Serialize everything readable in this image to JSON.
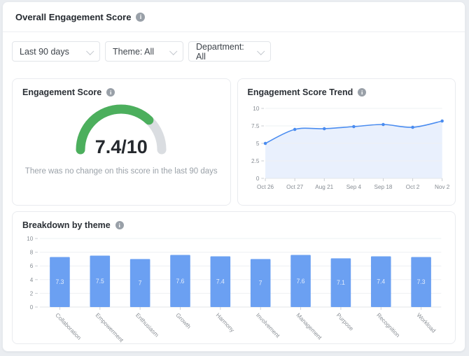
{
  "header": {
    "title": "Overall Engagement Score"
  },
  "filters": [
    {
      "label": "Last 90 days"
    },
    {
      "label": "Theme: All"
    },
    {
      "label": "Department: All"
    }
  ],
  "cards": {
    "gauge": {
      "title": "Engagement Score",
      "score_text": "7.4/10",
      "note": "There was no change on this score in the last 90 days"
    },
    "trend": {
      "title": "Engagement Score Trend"
    },
    "breakdown": {
      "title": "Breakdown by theme"
    }
  },
  "colors": {
    "gauge_arc": "#4caf5d",
    "gauge_track": "#dadde1",
    "trend_line": "#4a8cf0",
    "trend_area": "#e9f0fd",
    "bar_fill": "#6ba0f2",
    "bar_value_label": "#e3edfc",
    "axis_label": "#868c93",
    "gridline": "#eef0f3"
  },
  "chart_data": [
    {
      "id": "engagement-gauge",
      "type": "gauge",
      "title": "Engagement Score",
      "value": 7.4,
      "max": 10,
      "label": "7.4/10"
    },
    {
      "id": "engagement-trend",
      "type": "line",
      "title": "Engagement Score Trend",
      "x": [
        "Oct 26",
        "Oct 27",
        "Aug 21",
        "Sep 4",
        "Sep 18",
        "Oct 2",
        "Nov 2"
      ],
      "series": [
        {
          "name": "Engagement Score",
          "values": [
            5.0,
            7.0,
            7.1,
            7.4,
            7.7,
            7.3,
            8.2
          ]
        }
      ],
      "ylim": [
        0,
        10
      ],
      "yticks": [
        0,
        2.5,
        5,
        7.5,
        10
      ],
      "ytick_labels": [
        "0",
        "2.5",
        "5",
        "7.5",
        "10"
      ],
      "grid": true,
      "area": true,
      "legend": "none"
    },
    {
      "id": "theme-breakdown",
      "type": "bar",
      "title": "Breakdown by theme",
      "categories": [
        "Collaboration",
        "Empowerment",
        "Enthusiasm",
        "Growth",
        "Harmony",
        "Involvement",
        "Management",
        "Purpose",
        "Recognition",
        "Workload"
      ],
      "values": [
        7.3,
        7.5,
        7,
        7.6,
        7.4,
        7,
        7.6,
        7.1,
        7.4,
        7.3
      ],
      "value_labels": [
        "7.3",
        "7.5",
        "7",
        "7.6",
        "7.4",
        "7",
        "7.6",
        "7.1",
        "7.4",
        "7.3"
      ],
      "ylim": [
        0,
        10
      ],
      "yticks": [
        0,
        2,
        4,
        6,
        8,
        10
      ],
      "ytick_labels": [
        "0",
        "2",
        "4",
        "6",
        "8",
        "10"
      ],
      "grid": true,
      "legend": "none"
    }
  ]
}
